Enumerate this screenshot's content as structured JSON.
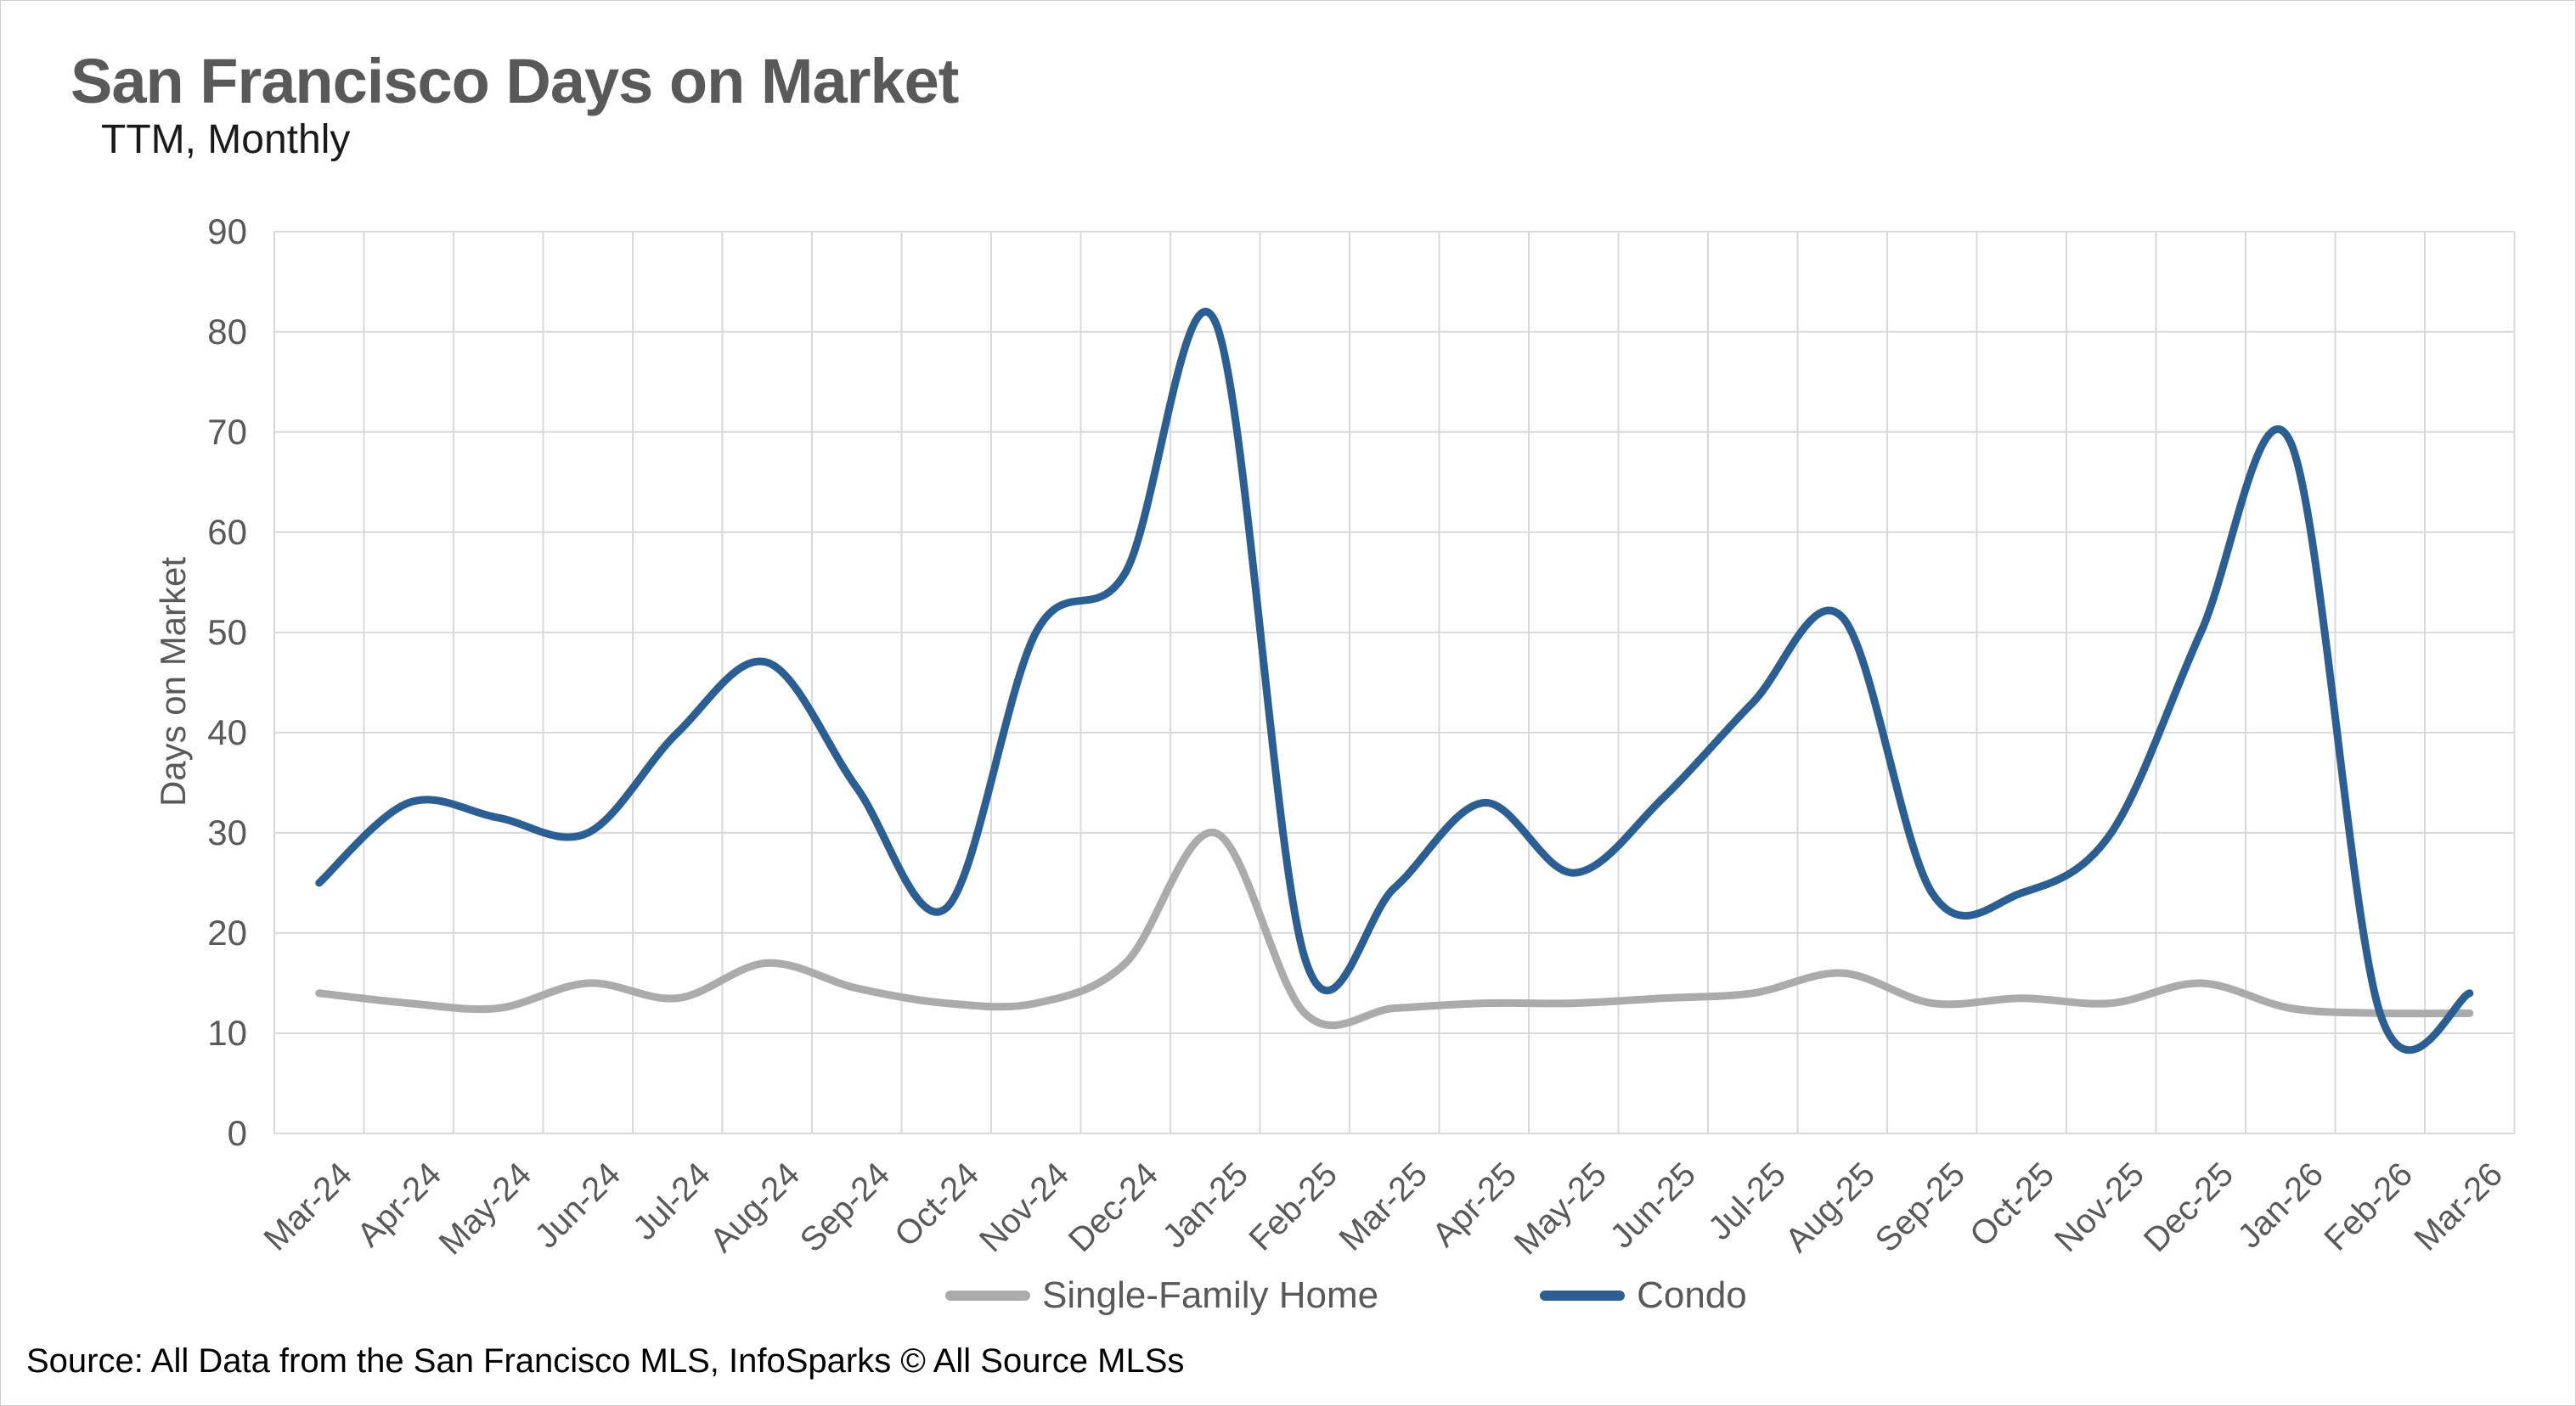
{
  "header": {
    "title": "San Francisco Days on Market",
    "subtitle": "TTM, Monthly"
  },
  "colors": {
    "condo_line": "#2B5F94",
    "single_family_line": "#ABABAB",
    "gridline": "#D9D9D9",
    "axis_text": "#595959",
    "title_text": "#595959"
  },
  "chart_data": {
    "type": "line",
    "title": "San Francisco Days on Market",
    "subtitle": "TTM, Monthly",
    "xlabel": "",
    "ylabel": "Days on Market",
    "ylim": [
      0,
      90
    ],
    "ytick_step": 10,
    "yticks": [
      0,
      10,
      20,
      30,
      40,
      50,
      60,
      70,
      80,
      90
    ],
    "grid": true,
    "legend_position": "bottom",
    "smooth_lines": true,
    "categories": [
      "Mar-24",
      "Apr-24",
      "May-24",
      "Jun-24",
      "Jul-24",
      "Aug-24",
      "Sep-24",
      "Oct-24",
      "Nov-24",
      "Dec-24",
      "Jan-25",
      "Feb-25",
      "Mar-25",
      "Apr-25",
      "May-25",
      "Jun-25",
      "Jul-25",
      "Aug-25",
      "Sep-25",
      "Oct-25",
      "Nov-25",
      "Dec-25",
      "Jan-26",
      "Feb-26",
      "Mar-26"
    ],
    "series": [
      {
        "name": "Single-Family Home",
        "color": "#ABABAB",
        "values": [
          14,
          13,
          12.5,
          15,
          13.5,
          17,
          14.5,
          13,
          13,
          17,
          30,
          12,
          12.5,
          13,
          13,
          13.5,
          14,
          16,
          13,
          13.5,
          13,
          15,
          12.5,
          12,
          12
        ]
      },
      {
        "name": "Condo",
        "color": "#2B5F94",
        "values": [
          25,
          33,
          31.5,
          30,
          40,
          47,
          34.5,
          22.5,
          50,
          56,
          81,
          17.5,
          24.5,
          33,
          26,
          33.5,
          43,
          51.5,
          24,
          24,
          30,
          50,
          69,
          12,
          14
        ]
      }
    ]
  },
  "source": {
    "text": "Source: All Data from the San Francisco MLS, InfoSparks © All Source MLSs"
  }
}
